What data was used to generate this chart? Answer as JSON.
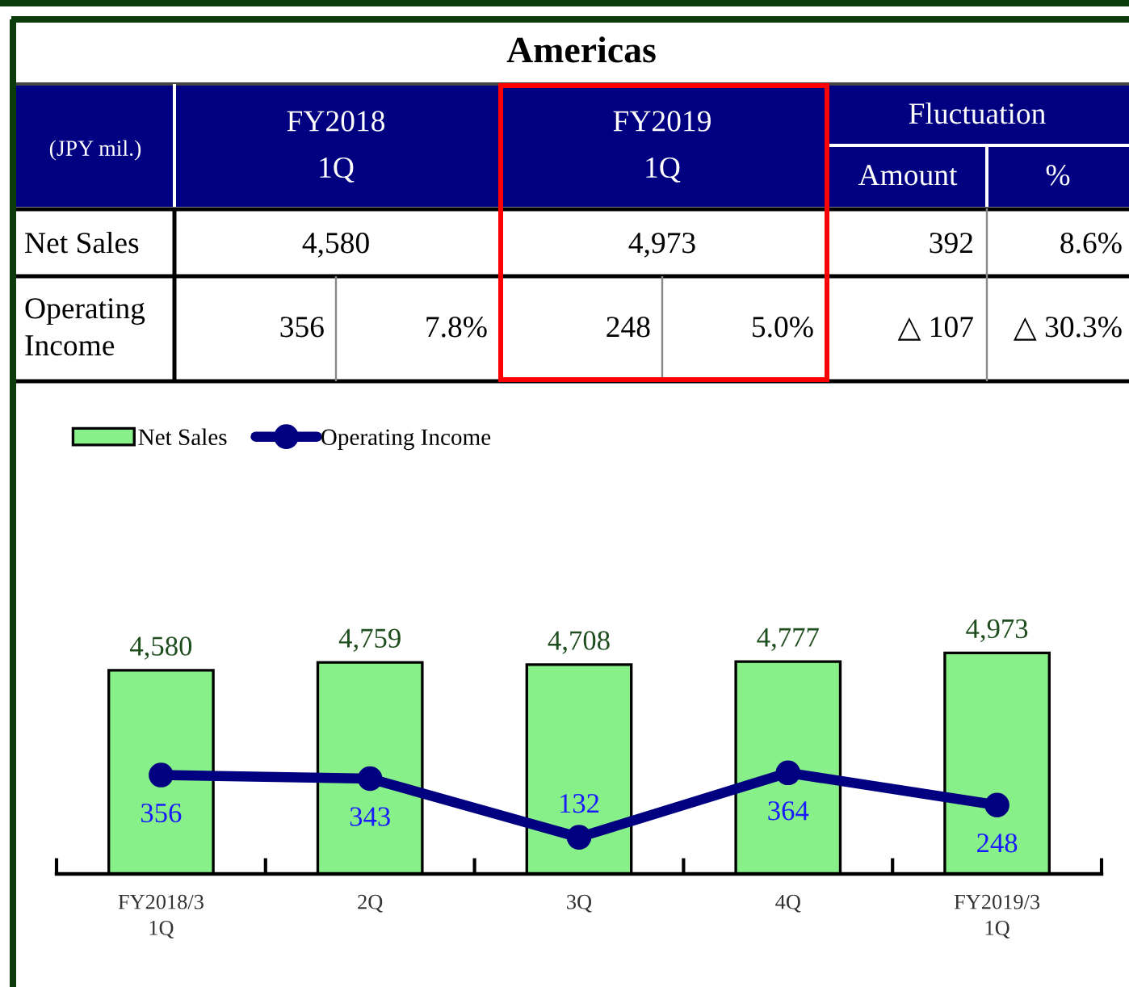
{
  "chart_data": [
    {
      "type": "other",
      "title": "Americas",
      "annotations": [
        "(JPY mil.)",
        "FY2018\n1Q",
        "FY2019\n1Q",
        "Fluctuation",
        "Amount",
        "%",
        "Net Sales",
        "4,580",
        "4,973",
        "392",
        "8.6%",
        "Operating\nIncome",
        "356",
        "7.8%",
        "248",
        "5.0%",
        "△ 107",
        "△ 30.3%"
      ]
    },
    {
      "type": "bar",
      "categories": [
        "FY2018/3\n1Q",
        "2Q",
        "3Q",
        "4Q",
        "FY2019/3\n1Q"
      ],
      "series": [
        {
          "name": "Net Sales",
          "color": "#88f088",
          "values": [
            4580,
            4759,
            4708,
            4777,
            4973
          ],
          "value_labels": [
            "4,580",
            "4,759",
            "4,708",
            "4,777",
            "4,973"
          ]
        },
        {
          "name": "Operating Income",
          "type": "line",
          "axis": "y2",
          "color": "#000080",
          "values": [
            356,
            343,
            132,
            364,
            248
          ],
          "value_labels": [
            "356",
            "343",
            "132",
            "364",
            "248"
          ]
        }
      ],
      "legend": "top left",
      "marker": "circle",
      "line_style": "solid"
    }
  ]
}
